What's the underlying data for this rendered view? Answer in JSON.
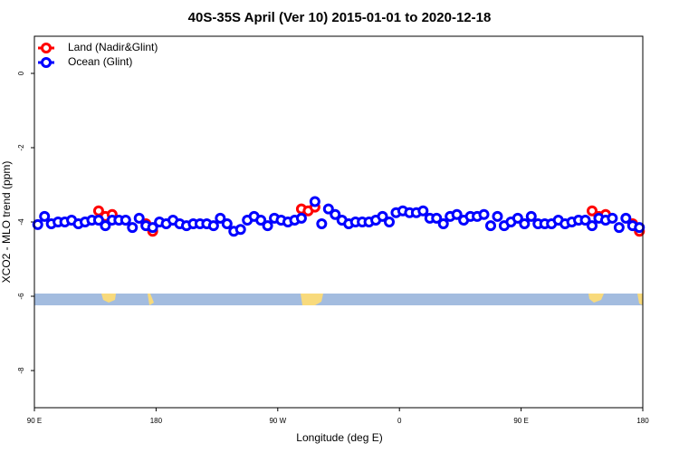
{
  "chart_data": {
    "type": "scatter",
    "title": "40S-35S April (Ver 10)   2015-01-01 to 2020-12-18",
    "x_label": "Longitude (deg E)",
    "y_label": "XCO2 - MLO trend (ppm)",
    "xlim": [
      90,
      540
    ],
    "ylim": [
      -9,
      1
    ],
    "xticks": [
      {
        "value": 90,
        "label": "90 E"
      },
      180,
      {
        "value": 270,
        "label": "90 W"
      },
      {
        "value": 360,
        "label": "0"
      },
      {
        "value": 450,
        "label": "90 E"
      },
      {
        "value": 540,
        "label": "180"
      }
    ],
    "yticks": [
      0,
      -2,
      -4,
      -6,
      -8
    ],
    "legend": "top-left",
    "x": [
      92.5,
      97.5,
      102.5,
      107.5,
      112.5,
      117.5,
      122.5,
      127.5,
      132.5,
      137.5,
      142.5,
      147.5,
      152.5,
      157.5,
      162.5,
      167.5,
      172.5,
      177.5,
      182.5,
      187.5,
      192.5,
      197.5,
      202.5,
      207.5,
      212.5,
      217.5,
      222.5,
      227.5,
      232.5,
      237.5,
      242.5,
      247.5,
      252.5,
      257.5,
      262.5,
      267.5,
      272.5,
      277.5,
      282.5,
      287.5,
      292.5,
      297.5,
      302.5,
      307.5,
      312.5,
      317.5,
      322.5,
      327.5,
      332.5,
      337.5,
      342.5,
      347.5,
      352.5,
      357.5,
      362.5,
      367.5,
      372.5,
      377.5,
      382.5,
      387.5,
      392.5,
      397.5,
      402.5,
      407.5,
      412.5,
      417.5,
      422.5,
      427.5,
      432.5,
      437.5,
      442.5,
      447.5,
      452.5,
      457.5,
      462.5,
      467.5,
      472.5,
      477.5,
      482.5,
      487.5,
      492.5,
      497.5,
      502.5,
      507.5,
      512.5,
      517.5,
      522.5,
      527.5,
      532.5,
      537.5
    ],
    "series": [
      {
        "name": "Land (Nadir&Glint)",
        "color": "#ff0000",
        "values": [
          null,
          null,
          null,
          null,
          null,
          null,
          null,
          null,
          null,
          -3.7,
          -3.85,
          -3.8,
          null,
          null,
          null,
          null,
          -4.05,
          -4.25,
          null,
          null,
          null,
          null,
          null,
          null,
          null,
          null,
          null,
          null,
          null,
          null,
          null,
          null,
          null,
          null,
          null,
          null,
          null,
          null,
          null,
          -3.65,
          -3.7,
          -3.6,
          null,
          null,
          null,
          null,
          null,
          null,
          null,
          null,
          null,
          null,
          null,
          null,
          null,
          null,
          null,
          null,
          null,
          null,
          null,
          null,
          null,
          null,
          null,
          null,
          null,
          null,
          null,
          null,
          null,
          null,
          null,
          null,
          null,
          null,
          null,
          null,
          null,
          null,
          null,
          null,
          -3.7,
          -3.85,
          -3.8,
          null,
          null,
          null,
          -4.05,
          -4.25
        ]
      },
      {
        "name": "Ocean (Glint)",
        "color": "#0000ff",
        "values": [
          -4.07,
          -3.85,
          -4.05,
          -4.0,
          -4.0,
          -3.95,
          -4.05,
          -4.0,
          -3.95,
          -3.95,
          -4.1,
          -3.95,
          -3.95,
          -3.95,
          -4.15,
          -3.9,
          -4.1,
          -4.15,
          -4.0,
          -4.05,
          -3.95,
          -4.05,
          -4.1,
          -4.05,
          -4.05,
          -4.05,
          -4.1,
          -3.9,
          -4.05,
          -4.25,
          -4.2,
          -3.95,
          -3.85,
          -3.95,
          -4.1,
          -3.9,
          -3.95,
          -4.0,
          -3.95,
          -3.9,
          null,
          -3.45,
          -4.05,
          -3.65,
          -3.8,
          -3.95,
          -4.05,
          -4.0,
          -4.0,
          -4.0,
          -3.95,
          -3.85,
          -4.0,
          -3.75,
          -3.7,
          -3.75,
          -3.75,
          -3.7,
          -3.9,
          -3.9,
          -4.05,
          -3.85,
          -3.8,
          -3.95,
          -3.85,
          -3.85,
          -3.8,
          -4.1,
          -3.85,
          -4.1,
          -4.0,
          -3.9,
          -4.05,
          -3.85,
          -4.05,
          -4.05,
          -4.05,
          -3.95,
          -4.05,
          -4.0,
          -3.95,
          -3.95,
          -4.1,
          -3.9,
          -3.95,
          -3.9,
          -4.15,
          -3.9,
          -4.1,
          -4.15
        ]
      }
    ]
  }
}
